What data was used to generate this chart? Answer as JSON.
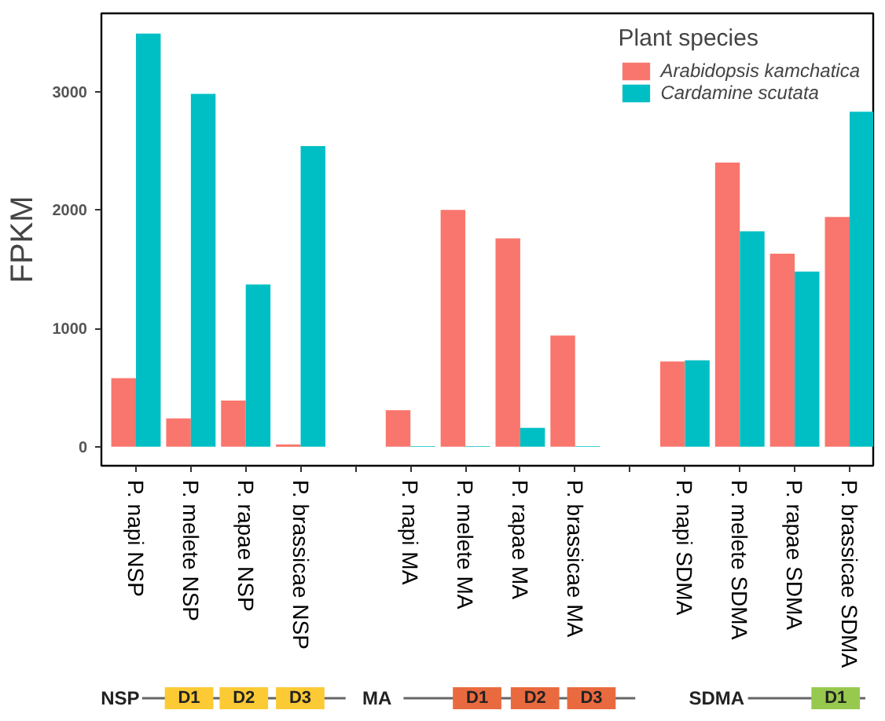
{
  "chart_data": {
    "type": "bar",
    "ylabel": "FPKM",
    "legend_title": "Plant species",
    "legend": "top right",
    "grid": false,
    "categories": [
      "P. napi NSP",
      "P. melete NSP",
      "P. rapae NSP",
      "P. brassicae NSP",
      null,
      "P. napi MA",
      "P. melete MA",
      "P. rapae MA",
      "P. brassicae MA",
      null,
      "P. napi SDMA",
      "P. melete SDMA",
      "P. rapae SDMA",
      "P. brassicae SDMA"
    ],
    "series": [
      {
        "name": "Arabidopsis kamchatica",
        "color": "#f8766d",
        "values": [
          580,
          240,
          390,
          20,
          null,
          310,
          2000,
          1760,
          940,
          null,
          720,
          2400,
          1630,
          1940
        ]
      },
      {
        "name": "Cardamine scutata",
        "color": "#00bfc4",
        "values": [
          3490,
          2980,
          1370,
          2540,
          null,
          5,
          5,
          160,
          5,
          null,
          730,
          1820,
          1480,
          2830
        ]
      }
    ],
    "ylim": [
      -160,
      3660
    ],
    "yticks": [
      0,
      1000,
      2000,
      3000
    ],
    "annotations": [
      "NSP",
      "D1",
      "D2",
      "D3",
      "MA",
      "D1",
      "D2",
      "D3",
      "SDMA",
      "D1"
    ]
  }
}
